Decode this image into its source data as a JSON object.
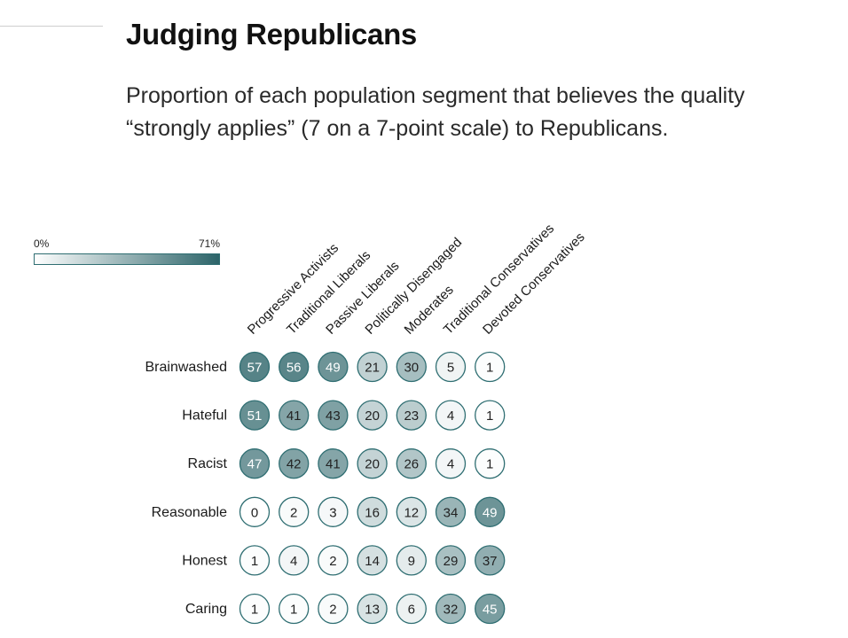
{
  "title": "Judging Republicans",
  "subtitle": "Proportion of each population segment that believes the quality “strongly applies” (7 on a 7-point scale) to Republicans.",
  "legend": {
    "min_label": "0%",
    "max_label": "71%",
    "min_color": "#ffffff",
    "max_color": "#2c6469"
  },
  "chart_data": {
    "type": "heatmap",
    "title": "Judging Republicans",
    "subtitle": "Proportion of each population segment that believes the quality “strongly applies” (7 on a 7-point scale) to Republicans.",
    "color_scale": {
      "min": 0,
      "max": 71,
      "min_color": "#ffffff",
      "max_color": "#2c6469"
    },
    "columns": [
      "Progressive Activists",
      "Traditional Liberals",
      "Passive Liberals",
      "Politically Disengaged",
      "Moderates",
      "Traditional Conservatives",
      "Devoted Conservatives"
    ],
    "rows": [
      "Brainwashed",
      "Hateful",
      "Racist",
      "Reasonable",
      "Honest",
      "Caring"
    ],
    "values": [
      [
        57,
        56,
        49,
        21,
        30,
        5,
        1
      ],
      [
        51,
        41,
        43,
        20,
        23,
        4,
        1
      ],
      [
        47,
        42,
        41,
        20,
        26,
        4,
        1
      ],
      [
        0,
        2,
        3,
        16,
        12,
        34,
        49
      ],
      [
        1,
        4,
        2,
        14,
        9,
        29,
        37
      ],
      [
        1,
        1,
        2,
        13,
        6,
        32,
        45
      ]
    ],
    "legend_position": "top-left"
  }
}
